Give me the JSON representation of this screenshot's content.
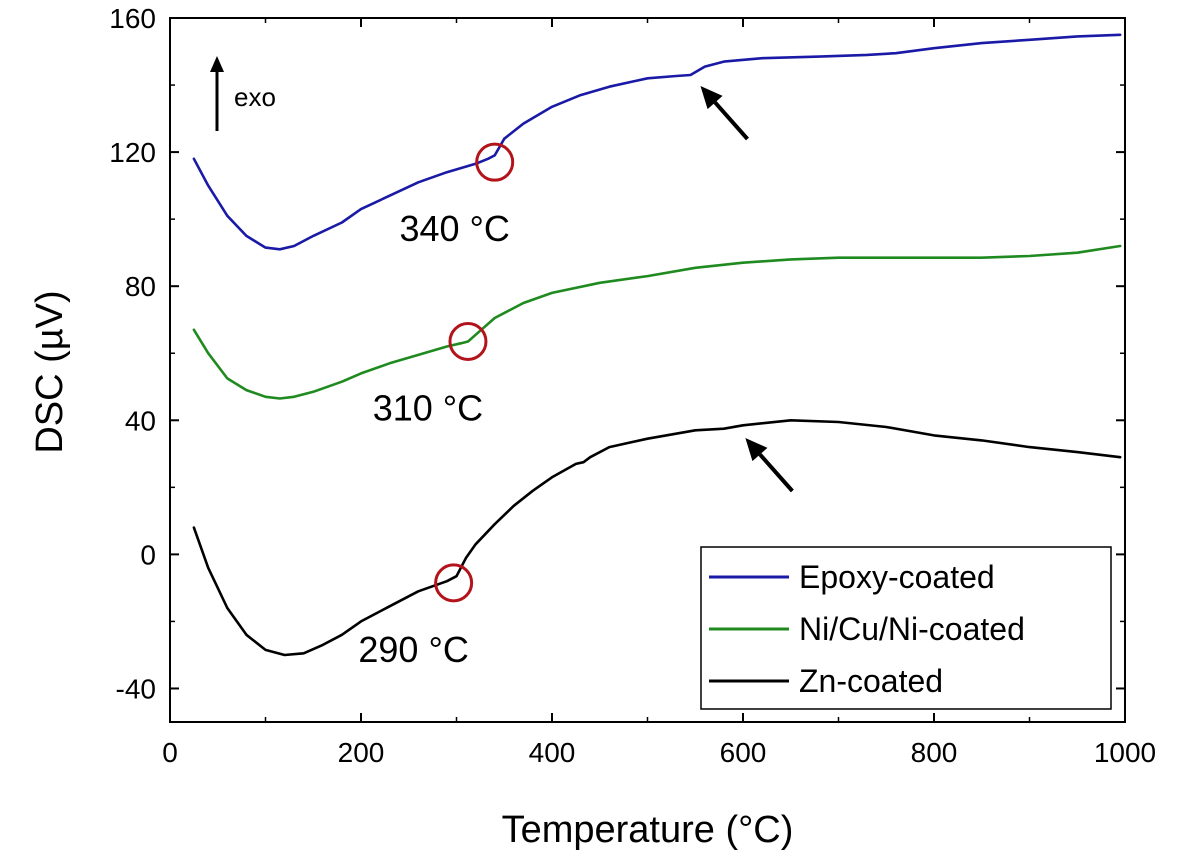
{
  "chart_data": {
    "type": "line",
    "xlabel": "Temperature (°C)",
    "ylabel": "DSC (µV)",
    "xlim": [
      0,
      1000
    ],
    "ylim": [
      -50,
      160
    ],
    "xticks": [
      0,
      200,
      400,
      600,
      800,
      1000
    ],
    "yticks": [
      -40,
      0,
      40,
      80,
      120,
      160
    ],
    "x_minor_step": 100,
    "y_minor_step": 20,
    "grid": false,
    "legend_position": "bottom-right",
    "exo_label": "exo",
    "series": [
      {
        "name": "Epoxy-coated",
        "color": "#1a1aa6",
        "x": [
          25,
          40,
          60,
          80,
          100,
          115,
          130,
          150,
          180,
          200,
          230,
          260,
          290,
          320,
          333,
          340,
          350,
          370,
          400,
          430,
          460,
          500,
          530,
          545,
          560,
          580,
          620,
          680,
          730,
          760,
          800,
          850,
          900,
          950,
          995
        ],
        "y": [
          118,
          110,
          101,
          95,
          91.5,
          91,
          92,
          95,
          99,
          103,
          107,
          111,
          114,
          116.5,
          118,
          119,
          124,
          128.5,
          133.5,
          137,
          139.5,
          142,
          142.7,
          143,
          145.5,
          147,
          148,
          148.5,
          149,
          149.5,
          151,
          152.5,
          153.5,
          154.5,
          155
        ]
      },
      {
        "name": "Ni/Cu/Ni-coated",
        "color": "#1f8a1f",
        "x": [
          25,
          40,
          60,
          80,
          100,
          115,
          130,
          150,
          180,
          200,
          230,
          260,
          290,
          305,
          312,
          320,
          340,
          370,
          400,
          450,
          500,
          550,
          600,
          650,
          700,
          750,
          800,
          850,
          900,
          950,
          995
        ],
        "y": [
          67,
          60,
          52.5,
          49,
          47,
          46.5,
          47,
          48.5,
          51.5,
          54,
          57,
          59.5,
          62,
          63,
          63.5,
          65.5,
          70.5,
          75,
          78,
          81,
          83,
          85.5,
          87,
          88,
          88.5,
          88.5,
          88.5,
          88.5,
          89,
          90,
          92
        ]
      },
      {
        "name": "Zn-coated",
        "color": "#000000",
        "x": [
          25,
          40,
          60,
          80,
          100,
          120,
          140,
          160,
          180,
          200,
          230,
          260,
          290,
          300,
          310,
          320,
          340,
          360,
          380,
          400,
          425,
          433,
          440,
          460,
          500,
          550,
          580,
          600,
          650,
          700,
          750,
          800,
          850,
          900,
          950,
          995
        ],
        "y": [
          8,
          -4,
          -16,
          -24,
          -28.5,
          -30,
          -29.5,
          -27,
          -24,
          -20,
          -15.5,
          -11,
          -8,
          -6.5,
          -1,
          3,
          9,
          14.5,
          19,
          23,
          27,
          27.5,
          29,
          32,
          34.5,
          37,
          37.5,
          38.5,
          40,
          39.5,
          38,
          35.5,
          34,
          32,
          30.5,
          29
        ]
      }
    ],
    "annotations": [
      {
        "label": "340 °C",
        "x": 340,
        "y": 117
      },
      {
        "label": "310 °C",
        "x": 312,
        "y": 63.5
      },
      {
        "label": "290 °C",
        "x": 297,
        "y": -8.5
      }
    ],
    "arrows": [
      {
        "x": 545,
        "y": 143
      },
      {
        "x": 592,
        "y": 38
      }
    ]
  }
}
